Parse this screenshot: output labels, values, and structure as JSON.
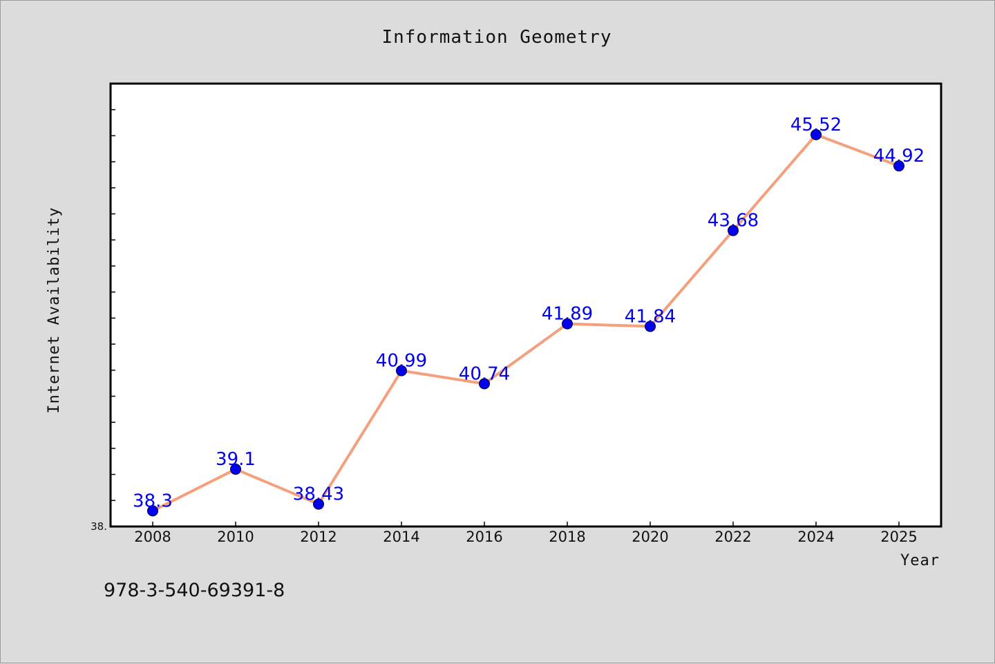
{
  "chart_data": {
    "type": "line",
    "title": "Information Geometry",
    "xlabel": "Year",
    "ylabel": "Internet Availability",
    "categories": [
      "2008",
      "2010",
      "2012",
      "2014",
      "2016",
      "2018",
      "2020",
      "2022",
      "2024",
      "2025"
    ],
    "series": [
      {
        "name": "",
        "values": [
          38.3,
          39.1,
          38.43,
          40.99,
          40.74,
          41.89,
          41.84,
          43.68,
          45.52,
          44.92
        ],
        "labels": [
          "38.3",
          "39.1",
          "38.43",
          "40.99",
          "40.74",
          "41.89",
          "41.84",
          "43.68",
          "45.52",
          "44.92"
        ]
      }
    ],
    "ylim": [
      38,
      46.5
    ],
    "y_min_label": "38.",
    "grid": false,
    "colors": {
      "line": "#f4a07c",
      "marker": "#0000ee",
      "label": "#0000ee"
    }
  },
  "footer": {
    "text": "978-3-540-69391-8"
  }
}
